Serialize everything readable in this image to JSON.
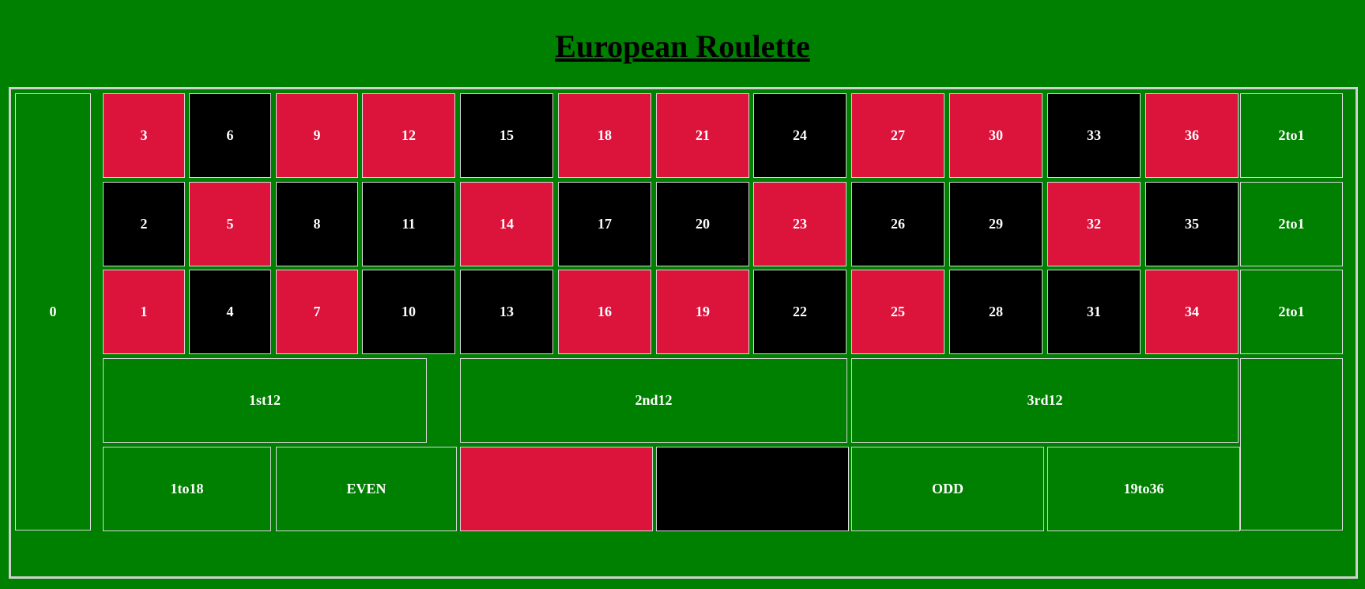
{
  "title": "European Roulette",
  "colors": {
    "table": "#008000",
    "red": "#dc143c",
    "black": "#000000",
    "border": "#d8d8d8",
    "text": "#ffffff"
  },
  "zero": "0",
  "rows": [
    [
      {
        "n": "3",
        "c": "red"
      },
      {
        "n": "6",
        "c": "black"
      },
      {
        "n": "9",
        "c": "red"
      },
      {
        "n": "12",
        "c": "red"
      },
      {
        "n": "15",
        "c": "black"
      },
      {
        "n": "18",
        "c": "red"
      },
      {
        "n": "21",
        "c": "red"
      },
      {
        "n": "24",
        "c": "black"
      },
      {
        "n": "27",
        "c": "red"
      },
      {
        "n": "30",
        "c": "red"
      },
      {
        "n": "33",
        "c": "black"
      },
      {
        "n": "36",
        "c": "red"
      }
    ],
    [
      {
        "n": "2",
        "c": "black"
      },
      {
        "n": "5",
        "c": "red"
      },
      {
        "n": "8",
        "c": "black"
      },
      {
        "n": "11",
        "c": "black"
      },
      {
        "n": "14",
        "c": "red"
      },
      {
        "n": "17",
        "c": "black"
      },
      {
        "n": "20",
        "c": "black"
      },
      {
        "n": "23",
        "c": "red"
      },
      {
        "n": "26",
        "c": "black"
      },
      {
        "n": "29",
        "c": "black"
      },
      {
        "n": "32",
        "c": "red"
      },
      {
        "n": "35",
        "c": "black"
      }
    ],
    [
      {
        "n": "1",
        "c": "red"
      },
      {
        "n": "4",
        "c": "black"
      },
      {
        "n": "7",
        "c": "red"
      },
      {
        "n": "10",
        "c": "black"
      },
      {
        "n": "13",
        "c": "black"
      },
      {
        "n": "16",
        "c": "red"
      },
      {
        "n": "19",
        "c": "red"
      },
      {
        "n": "22",
        "c": "black"
      },
      {
        "n": "25",
        "c": "red"
      },
      {
        "n": "28",
        "c": "black"
      },
      {
        "n": "31",
        "c": "black"
      },
      {
        "n": "34",
        "c": "red"
      }
    ]
  ],
  "columns": [
    "2to1",
    "2to1",
    "2to1"
  ],
  "dozens": [
    "1st12",
    "2nd12",
    "3rd12"
  ],
  "outside": {
    "low": "1to18",
    "even": "EVEN",
    "red": "",
    "black": "",
    "odd": "ODD",
    "high": "19to36"
  }
}
